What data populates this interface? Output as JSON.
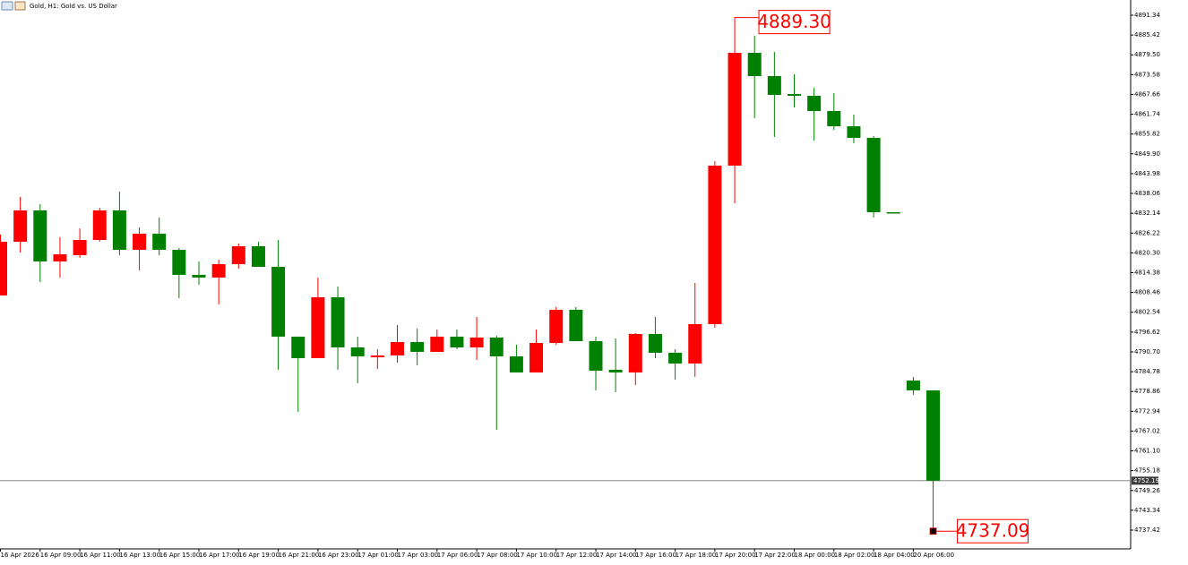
{
  "chart_data": {
    "type": "candlestick",
    "title": "Gold, H1:  Gold vs. US Dollar",
    "up_color": "#ff0000",
    "down_color": "#008000",
    "categories": [
      "16 Apr 2026",
      null,
      "16 Apr 09:00",
      null,
      "16 Apr 11:00",
      null,
      "16 Apr 13:00",
      null,
      "16 Apr 15:00",
      null,
      "16 Apr 17:00",
      null,
      "16 Apr 19:00",
      null,
      "16 Apr 21:00",
      null,
      "16 Apr 23:00",
      null,
      "17 Apr 01:00",
      null,
      "17 Apr 03:00",
      null,
      "17 Apr 06:00",
      null,
      "17 Apr 08:00",
      null,
      "17 Apr 10:00",
      null,
      "17 Apr 12:00",
      null,
      "17 Apr 14:00",
      null,
      "17 Apr 16:00",
      null,
      "17 Apr 18:00",
      null,
      "17 Apr 20:00",
      null,
      "17 Apr 22:00",
      null,
      "18 Apr 00:00",
      null,
      "18 Apr 02:00",
      null,
      "18 Apr 04:00",
      null,
      "20 Apr 06:00",
      null
    ],
    "open": [
      4807.56,
      4823.62,
      4832.99,
      4817.73,
      4819.6,
      4824.15,
      4832.99,
      4821.21,
      4826.03,
      4821.21,
      4813.72,
      4812.91,
      4816.93,
      4822.28,
      4816.12,
      4795.25,
      4788.82,
      4807.03,
      4792.03,
      4789.09,
      4789.63,
      4793.64,
      4790.7,
      4795.25,
      4792.03,
      4794.98,
      4789.36,
      4784.54,
      4793.37,
      4803.28,
      4793.91,
      4785.34,
      4784.54,
      4796.05,
      4790.43,
      4787.22,
      4798.99,
      4846.37,
      4880.1,
      4873.14,
      4867.78,
      4867.25,
      4862.7,
      4858.15,
      4854.67,
      4832.45,
      4782.13,
      4779.19
    ],
    "high": [
      4825.76,
      4837.0,
      4834.86,
      4824.96,
      4827.63,
      4833.79,
      4838.61,
      4827.9,
      4830.85,
      4821.75,
      4817.73,
      4818.27,
      4823.08,
      4823.62,
      4824.15,
      4795.25,
      4812.91,
      4810.24,
      4795.25,
      4791.5,
      4798.73,
      4797.65,
      4797.39,
      4797.39,
      4801.13,
      4795.51,
      4792.84,
      4797.39,
      4804.08,
      4804.08,
      4795.25,
      4794.71,
      4796.32,
      4801.13,
      4791.5,
      4811.31,
      4847.71,
      4889.3,
      4885.18,
      4880.37,
      4873.67,
      4869.66,
      4868.05,
      4861.63,
      4855.2,
      4832.45,
      4783.2,
      4779.19
    ],
    "low": [
      4807.56,
      4820.41,
      4811.57,
      4812.91,
      4818.8,
      4823.62,
      4819.6,
      4815.05,
      4819.6,
      4806.76,
      4810.77,
      4804.88,
      4815.59,
      4816.12,
      4785.34,
      4772.76,
      4788.82,
      4785.34,
      4781.33,
      4785.61,
      4787.48,
      4786.68,
      4790.7,
      4791.5,
      4788.29,
      4767.41,
      4784.54,
      4784.54,
      4792.84,
      4793.91,
      4779.19,
      4778.65,
      4780.79,
      4788.82,
      4782.4,
      4783.2,
      4797.92,
      4835.13,
      4860.56,
      4854.94,
      4863.77,
      4853.87,
      4857.08,
      4853.06,
      4830.85,
      4832.45,
      4777.85,
      4737.09
    ],
    "close": [
      4823.62,
      4832.99,
      4817.73,
      4819.87,
      4824.15,
      4832.99,
      4821.21,
      4826.03,
      4821.21,
      4813.72,
      4812.91,
      4816.93,
      4822.28,
      4816.12,
      4795.25,
      4788.82,
      4807.03,
      4792.03,
      4789.36,
      4789.63,
      4793.64,
      4790.7,
      4795.25,
      4792.03,
      4794.98,
      4789.36,
      4784.54,
      4793.37,
      4803.28,
      4793.91,
      4785.07,
      4784.54,
      4796.05,
      4790.43,
      4787.22,
      4798.99,
      4846.37,
      4880.1,
      4873.14,
      4867.52,
      4867.25,
      4862.7,
      4858.15,
      4854.67,
      4832.45,
      4832.45,
      4779.19,
      4752.19
    ],
    "ylim": [
      4731.8,
      4895.89
    ],
    "yticks": [
      4891.34,
      4885.42,
      {
        "value": 4879.5,
        "label": "4879.50"
      },
      4873.58,
      4867.66,
      4861.74,
      4855.82,
      {
        "value": 4849.9,
        "label": "4849.90"
      },
      4843.98,
      4838.06,
      4832.14,
      4826.22,
      {
        "value": 4820.3,
        "label": "4820.30"
      },
      4814.38,
      4808.46,
      4802.54,
      4796.62,
      {
        "value": 4790.7,
        "label": "4790.70"
      },
      4784.78,
      4778.86,
      4772.94,
      4767.02,
      {
        "value": 4761.1,
        "label": "4761.10"
      },
      4755.18,
      4749.26,
      4743.34,
      4737.42
    ],
    "current_price": {
      "value": 4752.19,
      "label": "4752.19"
    },
    "price_labels": [
      {
        "value": 4889.3,
        "label": "4889.30"
      },
      {
        "value": 4737.09,
        "label": "4737.09"
      }
    ]
  }
}
